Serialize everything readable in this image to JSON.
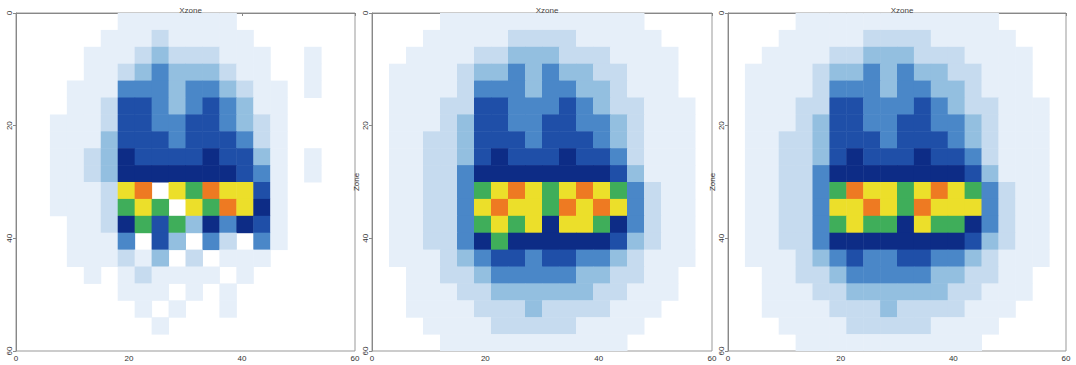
{
  "chart_data": [
    {
      "type": "heatmap",
      "title": "Xzone",
      "x": [
        1.5,
        4.5,
        7.5,
        10.5,
        13.5,
        16.5,
        19.5,
        22.5,
        25.5,
        28.5,
        31.5,
        34.5,
        37.5,
        40.5,
        43.5,
        46.5,
        49.5,
        52.5,
        55.5,
        58.5
      ],
      "y": [
        1.5,
        4.5,
        7.5,
        10.5,
        13.5,
        16.5,
        19.5,
        22.5,
        25.5,
        28.5,
        31.5,
        34.5,
        37.5,
        40.5,
        43.5,
        46.5,
        49.5,
        52.5,
        55.5,
        58.5
      ],
      "values": [
        [
          0,
          0,
          0,
          0,
          0,
          0,
          1,
          1,
          1,
          1,
          1,
          1,
          1,
          0,
          0,
          0,
          0,
          0,
          0,
          0
        ],
        [
          0,
          0,
          0,
          0,
          0,
          1,
          1,
          1,
          2,
          1,
          1,
          1,
          1,
          1,
          0,
          0,
          0,
          0,
          0,
          0
        ],
        [
          0,
          0,
          0,
          0,
          1,
          1,
          1,
          2,
          3,
          2,
          2,
          2,
          1,
          1,
          1,
          0,
          0,
          1,
          0,
          0
        ],
        [
          0,
          0,
          0,
          0,
          1,
          1,
          2,
          3,
          4,
          3,
          3,
          3,
          2,
          1,
          1,
          0,
          0,
          1,
          0,
          0
        ],
        [
          0,
          0,
          0,
          1,
          1,
          1,
          4,
          4,
          4,
          3,
          4,
          4,
          3,
          2,
          1,
          1,
          0,
          1,
          0,
          0
        ],
        [
          0,
          0,
          0,
          1,
          1,
          2,
          5,
          5,
          4,
          3,
          4,
          5,
          4,
          3,
          1,
          1,
          0,
          0,
          0,
          0
        ],
        [
          0,
          0,
          1,
          1,
          1,
          2,
          5,
          5,
          4,
          4,
          5,
          5,
          4,
          3,
          2,
          1,
          0,
          0,
          0,
          0
        ],
        [
          0,
          0,
          1,
          1,
          1,
          3,
          5,
          5,
          5,
          4,
          5,
          5,
          5,
          4,
          2,
          1,
          0,
          0,
          0,
          0
        ],
        [
          0,
          0,
          1,
          1,
          2,
          3,
          6,
          5,
          5,
          5,
          5,
          6,
          5,
          5,
          3,
          1,
          0,
          1,
          0,
          0
        ],
        [
          0,
          0,
          1,
          1,
          2,
          3,
          6,
          6,
          6,
          6,
          6,
          6,
          6,
          5,
          4,
          1,
          0,
          1,
          0,
          0
        ],
        [
          0,
          0,
          1,
          1,
          1,
          2,
          8,
          9,
          0,
          8,
          7,
          9,
          8,
          8,
          5,
          1,
          0,
          0,
          0,
          0
        ],
        [
          0,
          0,
          1,
          1,
          1,
          2,
          7,
          8,
          7,
          0,
          8,
          7,
          9,
          8,
          6,
          1,
          0,
          0,
          0,
          0
        ],
        [
          0,
          0,
          0,
          1,
          1,
          2,
          6,
          7,
          5,
          7,
          3,
          6,
          4,
          6,
          5,
          1,
          0,
          0,
          0,
          0
        ],
        [
          0,
          0,
          0,
          1,
          1,
          1,
          4,
          0,
          5,
          3,
          0,
          4,
          2,
          0,
          4,
          1,
          0,
          0,
          0,
          0
        ],
        [
          0,
          0,
          0,
          1,
          1,
          1,
          2,
          1,
          3,
          0,
          2,
          0,
          1,
          1,
          1,
          0,
          0,
          0,
          0,
          0
        ],
        [
          0,
          0,
          0,
          0,
          1,
          0,
          1,
          2,
          1,
          1,
          1,
          1,
          0,
          1,
          0,
          0,
          0,
          0,
          0,
          0
        ],
        [
          0,
          0,
          0,
          0,
          0,
          0,
          1,
          1,
          1,
          0,
          1,
          0,
          1,
          0,
          0,
          0,
          0,
          0,
          0,
          0
        ],
        [
          0,
          0,
          0,
          0,
          0,
          0,
          0,
          1,
          0,
          1,
          0,
          0,
          1,
          0,
          0,
          0,
          0,
          0,
          0,
          0
        ],
        [
          0,
          0,
          0,
          0,
          0,
          0,
          0,
          0,
          1,
          0,
          0,
          0,
          0,
          0,
          0,
          0,
          0,
          0,
          0,
          0
        ],
        [
          0,
          0,
          0,
          0,
          0,
          0,
          0,
          0,
          0,
          0,
          0,
          0,
          0,
          0,
          0,
          0,
          0,
          0,
          0,
          0
        ]
      ],
      "color_range": [
        0,
        9
      ],
      "xlim": [
        0,
        60
      ],
      "xticks": [
        0,
        20,
        40,
        60
      ],
      "ylim": [
        0,
        60
      ],
      "yticks": [
        0,
        20,
        40,
        60
      ]
    },
    {
      "type": "heatmap",
      "title": "Xzone",
      "y_label": "Zone",
      "x": [
        1.5,
        4.5,
        7.5,
        10.5,
        13.5,
        16.5,
        19.5,
        22.5,
        25.5,
        28.5,
        31.5,
        34.5,
        37.5,
        40.5,
        43.5,
        46.5,
        49.5,
        52.5,
        55.5,
        58.5
      ],
      "y": [
        1.5,
        4.5,
        7.5,
        10.5,
        13.5,
        16.5,
        19.5,
        22.5,
        25.5,
        28.5,
        31.5,
        34.5,
        37.5,
        40.5,
        43.5,
        46.5,
        49.5,
        52.5,
        55.5,
        58.5
      ],
      "values": [
        [
          0,
          0,
          0,
          0,
          1,
          1,
          1,
          1,
          1,
          1,
          1,
          1,
          1,
          1,
          1,
          1,
          0,
          0,
          0,
          0
        ],
        [
          0,
          0,
          0,
          1,
          1,
          1,
          1,
          1,
          2,
          2,
          2,
          2,
          1,
          1,
          1,
          1,
          1,
          0,
          0,
          0
        ],
        [
          0,
          0,
          1,
          1,
          1,
          1,
          2,
          2,
          3,
          3,
          3,
          2,
          2,
          2,
          1,
          1,
          1,
          1,
          0,
          0
        ],
        [
          0,
          1,
          1,
          1,
          1,
          2,
          3,
          3,
          4,
          3,
          4,
          3,
          3,
          2,
          2,
          1,
          1,
          1,
          0,
          0
        ],
        [
          0,
          1,
          1,
          1,
          1,
          2,
          4,
          4,
          4,
          3,
          4,
          4,
          3,
          3,
          2,
          1,
          1,
          1,
          0,
          0
        ],
        [
          0,
          1,
          1,
          1,
          2,
          2,
          5,
          5,
          4,
          4,
          4,
          5,
          4,
          3,
          2,
          2,
          1,
          1,
          1,
          0
        ],
        [
          0,
          1,
          1,
          1,
          2,
          3,
          5,
          5,
          4,
          4,
          5,
          5,
          4,
          4,
          3,
          2,
          1,
          1,
          1,
          0
        ],
        [
          0,
          1,
          1,
          2,
          2,
          3,
          5,
          5,
          5,
          4,
          5,
          5,
          5,
          4,
          3,
          2,
          1,
          1,
          1,
          0
        ],
        [
          0,
          1,
          1,
          2,
          2,
          3,
          5,
          6,
          5,
          5,
          5,
          6,
          5,
          5,
          4,
          2,
          1,
          1,
          1,
          0
        ],
        [
          0,
          1,
          1,
          2,
          2,
          4,
          6,
          6,
          6,
          6,
          6,
          6,
          6,
          6,
          5,
          3,
          1,
          1,
          1,
          0
        ],
        [
          0,
          1,
          1,
          2,
          2,
          4,
          7,
          8,
          9,
          8,
          7,
          8,
          9,
          8,
          7,
          4,
          2,
          1,
          1,
          0
        ],
        [
          0,
          1,
          1,
          2,
          2,
          4,
          8,
          9,
          8,
          8,
          7,
          9,
          8,
          9,
          8,
          4,
          2,
          1,
          1,
          0
        ],
        [
          0,
          1,
          1,
          2,
          2,
          4,
          7,
          8,
          7,
          8,
          6,
          8,
          8,
          7,
          6,
          4,
          2,
          1,
          1,
          0
        ],
        [
          0,
          1,
          1,
          2,
          2,
          4,
          6,
          7,
          6,
          6,
          6,
          6,
          6,
          6,
          5,
          3,
          2,
          1,
          1,
          0
        ],
        [
          0,
          1,
          1,
          1,
          2,
          3,
          4,
          5,
          5,
          4,
          5,
          5,
          4,
          4,
          3,
          2,
          1,
          1,
          1,
          0
        ],
        [
          0,
          0,
          1,
          1,
          2,
          2,
          3,
          4,
          4,
          4,
          4,
          4,
          3,
          3,
          2,
          2,
          1,
          1,
          0,
          0
        ],
        [
          0,
          0,
          1,
          1,
          1,
          2,
          2,
          3,
          3,
          3,
          3,
          3,
          3,
          2,
          2,
          1,
          1,
          1,
          0,
          0
        ],
        [
          0,
          0,
          1,
          1,
          1,
          1,
          2,
          2,
          2,
          3,
          2,
          2,
          2,
          2,
          1,
          1,
          1,
          0,
          0,
          0
        ],
        [
          0,
          0,
          0,
          1,
          1,
          1,
          1,
          2,
          2,
          2,
          2,
          2,
          1,
          1,
          1,
          1,
          0,
          0,
          0,
          0
        ],
        [
          0,
          0,
          0,
          0,
          1,
          1,
          1,
          1,
          1,
          1,
          1,
          1,
          1,
          1,
          1,
          0,
          0,
          0,
          0,
          0
        ]
      ],
      "color_range": [
        0,
        9
      ],
      "xlim": [
        0,
        60
      ],
      "xticks": [
        0,
        20,
        40,
        60
      ],
      "ylim": [
        0,
        60
      ],
      "yticks": [
        0,
        20,
        40,
        60
      ]
    },
    {
      "type": "heatmap",
      "title": "Xzone",
      "y_label": "Zone",
      "x": [
        1.5,
        4.5,
        7.5,
        10.5,
        13.5,
        16.5,
        19.5,
        22.5,
        25.5,
        28.5,
        31.5,
        34.5,
        37.5,
        40.5,
        43.5,
        46.5,
        49.5,
        52.5,
        55.5,
        58.5
      ],
      "y": [
        1.5,
        4.5,
        7.5,
        10.5,
        13.5,
        16.5,
        19.5,
        22.5,
        25.5,
        28.5,
        31.5,
        34.5,
        37.5,
        40.5,
        43.5,
        46.5,
        49.5,
        52.5,
        55.5,
        58.5
      ],
      "values": [
        [
          0,
          0,
          0,
          0,
          1,
          1,
          1,
          1,
          1,
          1,
          1,
          1,
          1,
          1,
          1,
          1,
          0,
          0,
          0,
          0
        ],
        [
          0,
          0,
          0,
          1,
          1,
          1,
          1,
          1,
          2,
          2,
          2,
          2,
          1,
          1,
          1,
          1,
          1,
          0,
          0,
          0
        ],
        [
          0,
          0,
          1,
          1,
          1,
          1,
          2,
          2,
          3,
          3,
          3,
          2,
          2,
          2,
          1,
          1,
          1,
          1,
          0,
          0
        ],
        [
          0,
          1,
          1,
          1,
          1,
          2,
          3,
          3,
          4,
          3,
          4,
          3,
          3,
          2,
          2,
          1,
          1,
          1,
          0,
          0
        ],
        [
          0,
          1,
          1,
          1,
          1,
          2,
          4,
          4,
          4,
          3,
          4,
          4,
          3,
          3,
          2,
          1,
          1,
          1,
          0,
          0
        ],
        [
          0,
          1,
          1,
          1,
          2,
          2,
          5,
          5,
          4,
          4,
          4,
          5,
          4,
          3,
          2,
          2,
          1,
          1,
          1,
          0
        ],
        [
          0,
          1,
          1,
          1,
          2,
          3,
          5,
          5,
          4,
          4,
          5,
          5,
          4,
          4,
          3,
          2,
          1,
          1,
          1,
          0
        ],
        [
          0,
          1,
          1,
          2,
          2,
          3,
          5,
          5,
          5,
          4,
          5,
          5,
          5,
          4,
          3,
          2,
          1,
          1,
          1,
          0
        ],
        [
          0,
          1,
          1,
          2,
          2,
          3,
          5,
          6,
          5,
          5,
          5,
          6,
          5,
          5,
          4,
          2,
          1,
          1,
          1,
          0
        ],
        [
          0,
          1,
          1,
          2,
          2,
          4,
          6,
          6,
          6,
          6,
          6,
          6,
          6,
          6,
          5,
          3,
          1,
          1,
          1,
          0
        ],
        [
          0,
          1,
          1,
          2,
          2,
          4,
          7,
          9,
          8,
          8,
          7,
          8,
          9,
          8,
          7,
          4,
          2,
          1,
          1,
          0
        ],
        [
          0,
          1,
          1,
          2,
          2,
          4,
          8,
          8,
          9,
          8,
          7,
          9,
          8,
          8,
          8,
          4,
          2,
          1,
          1,
          0
        ],
        [
          0,
          1,
          1,
          2,
          2,
          4,
          7,
          8,
          7,
          7,
          6,
          8,
          7,
          7,
          6,
          4,
          2,
          1,
          1,
          0
        ],
        [
          0,
          1,
          1,
          2,
          2,
          4,
          6,
          6,
          6,
          6,
          6,
          6,
          6,
          6,
          5,
          3,
          2,
          1,
          1,
          0
        ],
        [
          0,
          1,
          1,
          1,
          2,
          3,
          4,
          5,
          4,
          4,
          5,
          5,
          4,
          4,
          3,
          2,
          1,
          1,
          1,
          0
        ],
        [
          0,
          0,
          1,
          1,
          2,
          2,
          3,
          4,
          4,
          4,
          4,
          4,
          3,
          3,
          2,
          2,
          1,
          1,
          0,
          0
        ],
        [
          0,
          0,
          1,
          1,
          1,
          2,
          2,
          3,
          3,
          3,
          3,
          3,
          3,
          2,
          2,
          1,
          1,
          1,
          0,
          0
        ],
        [
          0,
          0,
          1,
          1,
          1,
          1,
          2,
          2,
          2,
          3,
          2,
          2,
          2,
          2,
          1,
          1,
          1,
          0,
          0,
          0
        ],
        [
          0,
          0,
          0,
          1,
          1,
          1,
          1,
          2,
          2,
          2,
          2,
          2,
          1,
          1,
          1,
          1,
          0,
          0,
          0,
          0
        ],
        [
          0,
          0,
          0,
          0,
          1,
          1,
          1,
          1,
          1,
          1,
          1,
          1,
          1,
          1,
          1,
          0,
          0,
          0,
          0,
          0
        ]
      ],
      "color_range": [
        0,
        9
      ],
      "xlim": [
        0,
        60
      ],
      "xticks": [
        0,
        20,
        40,
        60
      ],
      "ylim": [
        0,
        60
      ],
      "yticks": [
        0,
        20,
        40,
        60
      ]
    }
  ]
}
